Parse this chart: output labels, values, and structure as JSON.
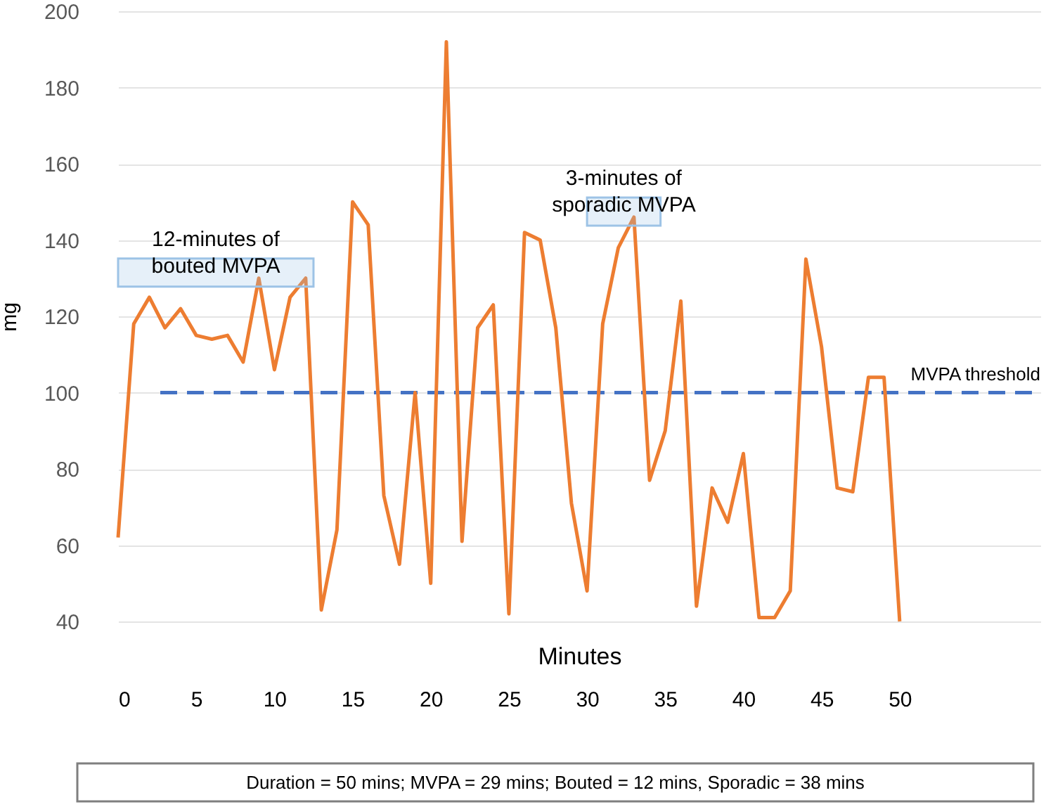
{
  "chart_data": {
    "type": "line",
    "xlabel": "Minutes",
    "ylabel": "mg",
    "x": [
      0,
      1,
      2,
      3,
      4,
      5,
      6,
      7,
      8,
      9,
      10,
      11,
      12,
      13,
      14,
      15,
      16,
      17,
      18,
      19,
      20,
      21,
      22,
      23,
      24,
      25,
      26,
      27,
      28,
      29,
      30,
      31,
      32,
      33,
      34,
      35,
      36,
      37,
      38,
      39,
      40,
      41,
      42,
      43,
      44,
      45,
      46,
      47,
      48,
      49,
      50
    ],
    "series": [
      {
        "color": "#ed7d31",
        "values": [
          62,
          118,
          125,
          117,
          122,
          115,
          114,
          115,
          108,
          130,
          106,
          125,
          130,
          43,
          64,
          150,
          144,
          73,
          55,
          100,
          50,
          192,
          61,
          117,
          123,
          42,
          142,
          140,
          117,
          71,
          48,
          118,
          138,
          146,
          77,
          90,
          124,
          44,
          75,
          66,
          84,
          41,
          41,
          48,
          135,
          112,
          75,
          74,
          104,
          104,
          40
        ]
      }
    ],
    "xlim": [
      0,
      59
    ],
    "xticks": [
      0,
      5,
      10,
      15,
      20,
      25,
      30,
      35,
      40,
      45,
      50
    ],
    "ylim": [
      40,
      200
    ],
    "yticks": [
      40,
      60,
      80,
      100,
      120,
      140,
      160,
      180,
      200
    ],
    "grid": "y",
    "marker": "none",
    "line_style": "solid",
    "ref_lines": [
      {
        "axis": "y",
        "value": 100,
        "label": "MVPA threshold",
        "color": "#4472c4",
        "line_style": "dashed"
      }
    ],
    "bands": [
      {
        "axis": "x",
        "from": 0,
        "to": 12.5,
        "label": "12-minutes of\nbouted MVPA",
        "color": "#9dc3e6"
      },
      {
        "axis": "x",
        "from": 30,
        "to": 34.7,
        "label": "3-minutes of\nsporadic MVPA",
        "color": "#9dc3e6"
      }
    ],
    "annotations": [
      "Duration = 50 mins; MVPA = 29 mins; Bouted = 12 mins, Sporadic = 38 mins"
    ]
  }
}
